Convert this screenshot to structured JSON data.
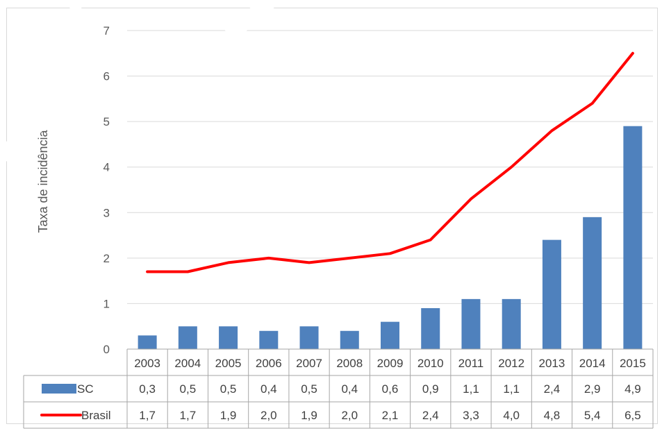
{
  "chart_data": {
    "type": "bar",
    "ylabel": "Taxa de incidência",
    "ylim": [
      0,
      7
    ],
    "yticks": [
      "0",
      "1",
      "2",
      "3",
      "4",
      "5",
      "6",
      "7"
    ],
    "grid": true,
    "categories": [
      "2003",
      "2004",
      "2005",
      "2006",
      "2007",
      "2008",
      "2009",
      "2010",
      "2011",
      "2012",
      "2013",
      "2014",
      "2015"
    ],
    "series": [
      {
        "name": "SC",
        "kind": "bar",
        "color": "#4f81bd",
        "values": [
          0.3,
          0.5,
          0.5,
          0.4,
          0.5,
          0.4,
          0.6,
          0.9,
          1.1,
          1.1,
          2.4,
          2.9,
          4.9
        ],
        "labels": [
          "0,3",
          "0,5",
          "0,5",
          "0,4",
          "0,5",
          "0,4",
          "0,6",
          "0,9",
          "1,1",
          "1,1",
          "2,4",
          "2,9",
          "4,9"
        ]
      },
      {
        "name": "Brasil",
        "kind": "line",
        "color": "#ff0000",
        "values": [
          1.7,
          1.7,
          1.9,
          2.0,
          1.9,
          2.0,
          2.1,
          2.4,
          3.3,
          4.0,
          4.8,
          5.4,
          6.5
        ],
        "labels": [
          "1,7",
          "1,7",
          "1,9",
          "2,0",
          "1,9",
          "2,0",
          "2,1",
          "2,4",
          "3,3",
          "4,0",
          "4,8",
          "5,4",
          "6,5"
        ]
      }
    ],
    "legend": "data-table"
  }
}
